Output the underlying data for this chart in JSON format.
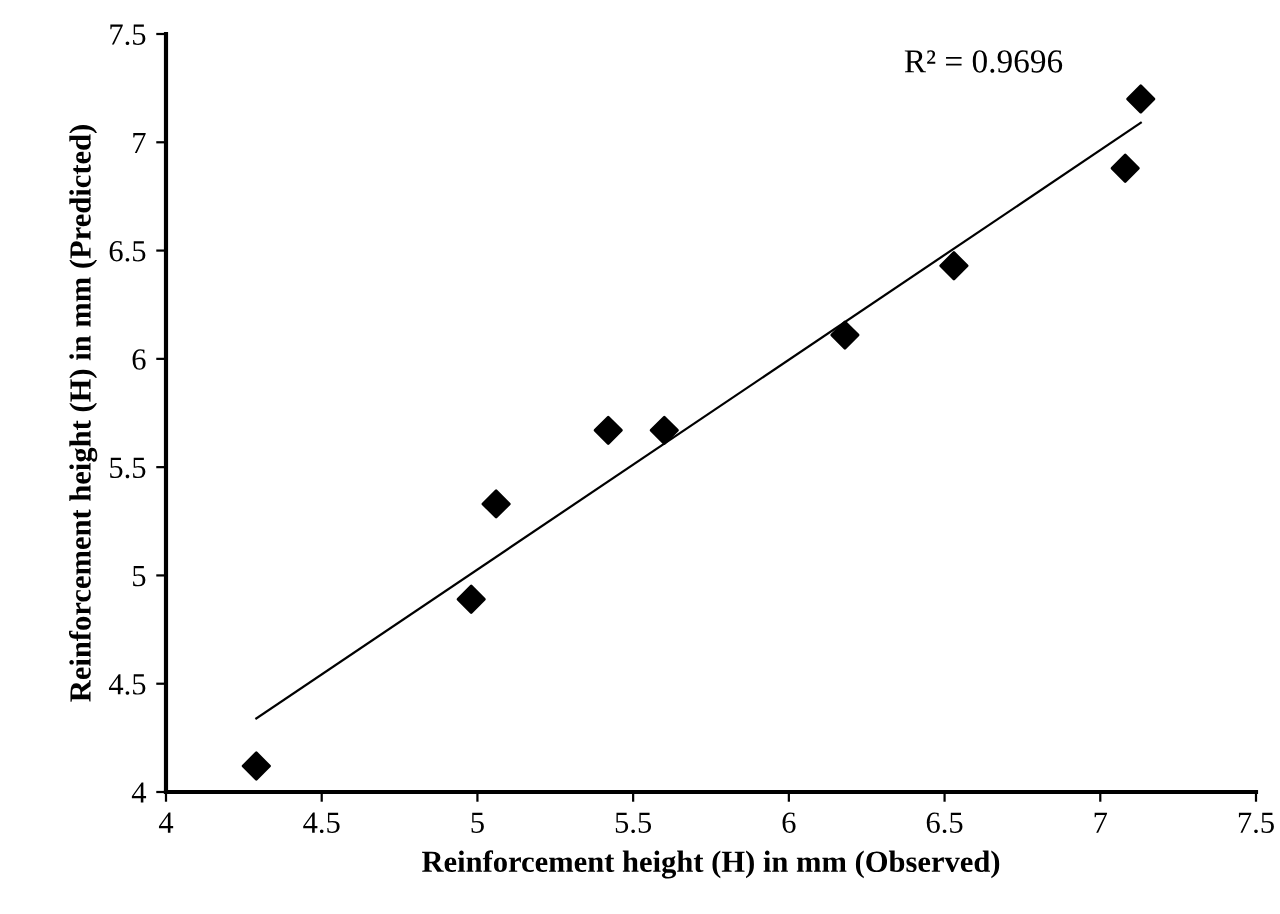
{
  "chart_data": {
    "type": "scatter",
    "xlabel": "Reinforcement height (H) in mm (Observed)",
    "ylabel": "Reinforcement height (H) in mm (Predicted)",
    "annotations": [
      "R² = 0.9696"
    ],
    "series": [
      {
        "color": "#000000",
        "marker": "diamond",
        "x": [
          4.29,
          4.98,
          5.06,
          5.42,
          5.6,
          6.18,
          6.53,
          7.08,
          7.13
        ],
        "values": [
          4.12,
          4.89,
          5.33,
          5.67,
          5.67,
          6.11,
          6.43,
          6.88,
          7.2
        ]
      },
      {
        "type": "line",
        "color": "#000000",
        "marker": "none",
        "x": [
          4.29,
          7.13
        ],
        "values": [
          4.34,
          7.09
        ]
      }
    ],
    "xlim": [
      4,
      7.5
    ],
    "ylim": [
      4,
      7.5
    ],
    "xticks": [
      4,
      4.5,
      5,
      5.5,
      6,
      6.5,
      7,
      7.5
    ],
    "yticks": [
      4,
      4.5,
      5,
      5.5,
      6,
      6.5,
      7,
      7.5
    ],
    "grid": false,
    "legend": false
  }
}
